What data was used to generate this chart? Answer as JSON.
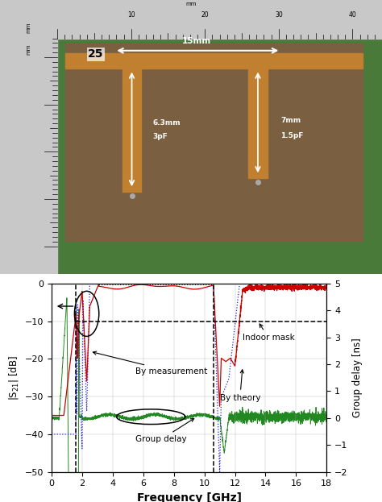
{
  "left_ylabel": "|S$_{21}$| [dB]",
  "right_ylabel": "Group delay [ns]",
  "xlabel": "Frequency [GHz]",
  "xlim": [
    0,
    18
  ],
  "ylim_left": [
    -50,
    0
  ],
  "ylim_right": [
    -2,
    5
  ],
  "xticks": [
    0,
    2,
    4,
    6,
    8,
    10,
    12,
    14,
    16,
    18
  ],
  "yticks_left": [
    -50,
    -40,
    -30,
    -20,
    -10,
    0
  ],
  "yticks_right": [
    -2,
    -1,
    0,
    1,
    2,
    3,
    4,
    5
  ],
  "annotation_measurement": "By measurement",
  "annotation_theory": "By theory",
  "annotation_group_delay": "Group delay",
  "annotation_indoor_mask": "Indoor mask",
  "colors": {
    "measurement": "#cc0000",
    "theory": "#2222dd",
    "group_delay": "#228822",
    "dashed": "#000000"
  },
  "mask_vline1": 1.6,
  "mask_vline2": 10.6,
  "mask_hline": -10,
  "passband_start": 3.1,
  "passband_end": 10.6,
  "photo_bgcolor": "#4a7a3a",
  "ruler_color": "#c8c8c8",
  "pcb_color": "#7a6040",
  "copper_color": "#c08030"
}
